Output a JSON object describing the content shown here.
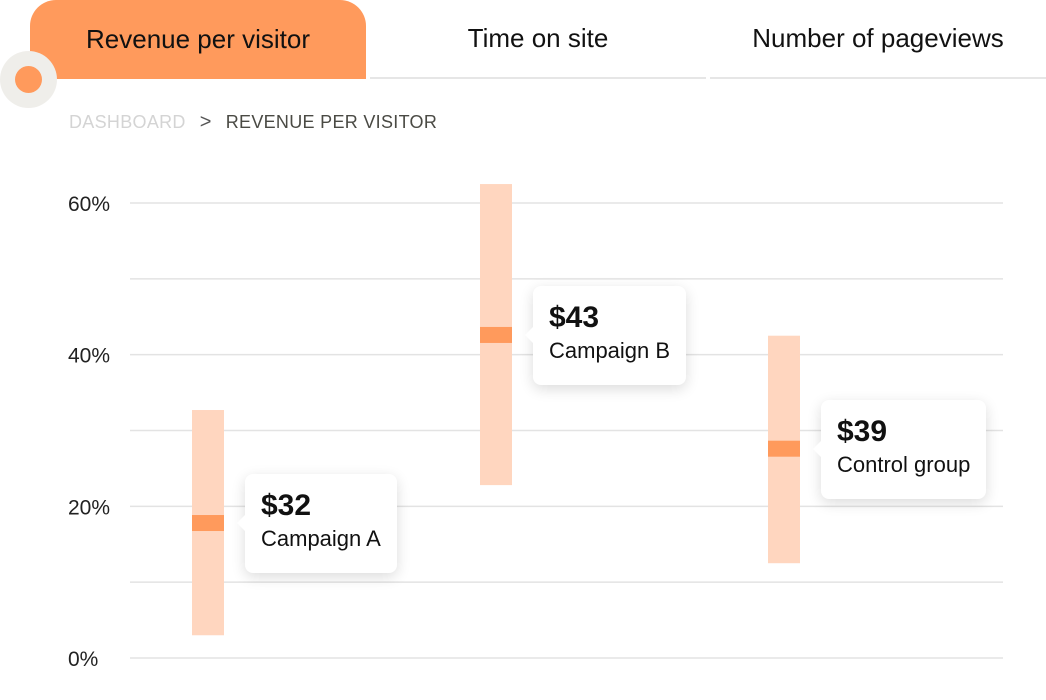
{
  "tabs": [
    {
      "label": "Revenue per visitor",
      "active": true
    },
    {
      "label": "Time on site",
      "active": false
    },
    {
      "label": "Number of pageviews",
      "active": false
    }
  ],
  "breadcrumb": {
    "root": "DASHBOARD",
    "separator": ">",
    "current": "REVENUE PER VISITOR"
  },
  "colors": {
    "accent": "#ff9a5c",
    "range": "#ffd6bf",
    "grid": "#e3e3e3"
  },
  "chart_data": {
    "type": "range",
    "ylim": [
      0,
      60
    ],
    "yticks": [
      0,
      20,
      40,
      60
    ],
    "ytick_labels": [
      "0%",
      "20%",
      "40%",
      "60%"
    ],
    "grid": true,
    "series": [
      {
        "name": "Campaign A",
        "value_label": "$32",
        "low": 3,
        "high": 32.7,
        "mid": 17.8
      },
      {
        "name": "Campaign B",
        "value_label": "$43",
        "low": 22.8,
        "high": 62.5,
        "mid": 42.6
      },
      {
        "name": "Control group",
        "value_label": "$39",
        "low": 12.5,
        "high": 42.5,
        "mid": 27.6
      }
    ]
  }
}
